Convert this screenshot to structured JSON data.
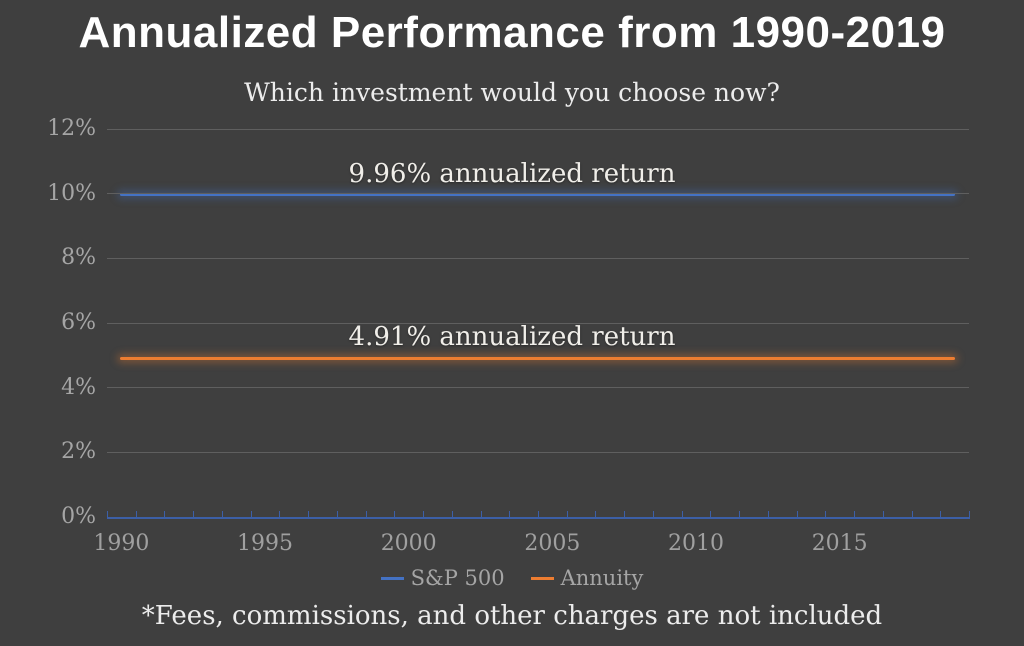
{
  "chart_data": {
    "type": "line",
    "title": "Annualized Performance from 1990-2019",
    "subtitle": "Which investment would you choose now?",
    "x_range": [
      1990,
      2019
    ],
    "xtick_labels": [
      "1990",
      "1995",
      "2000",
      "2005",
      "2010",
      "2015"
    ],
    "ytick_labels": [
      "0%",
      "2%",
      "4%",
      "6%",
      "8%",
      "10%",
      "12%"
    ],
    "ytick_values": [
      0,
      2,
      4,
      6,
      8,
      10,
      12
    ],
    "ylim": [
      0,
      12
    ],
    "grid": true,
    "legend_position": "bottom",
    "series": [
      {
        "name": "S&P 500",
        "color": "#4472c4",
        "annualized_return_pct": 9.96,
        "annotation": "9.96% annualized return",
        "shape": "flat-horizontal-line"
      },
      {
        "name": "Annuity",
        "color": "#ed7d31",
        "annualized_return_pct": 4.91,
        "annotation": "4.91% annualized return",
        "shape": "flat-horizontal-line"
      }
    ],
    "footnote": "*Fees, commissions, and other charges are not included"
  },
  "colors": {
    "background": "#3f3f3f",
    "title_text": "#ffffff",
    "subtitle_text": "#ececec",
    "axis_label_text": "#a5a5a5",
    "gridline": "#5f5f5f",
    "x_axis_line": "#3c5fa6",
    "annotation_text": "#f0eee9",
    "legend_text": "#a5a5a5",
    "footnote_text": "#ececec"
  }
}
